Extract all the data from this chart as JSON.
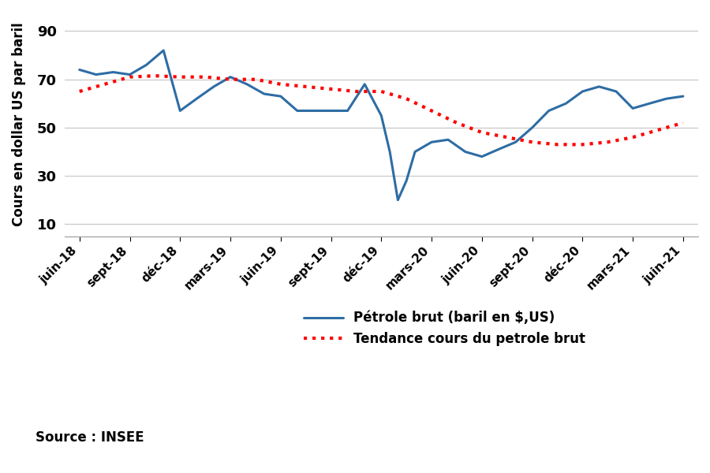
{
  "x_labels": [
    "juin-18",
    "sept-18",
    "déc-18",
    "mars-19",
    "juin-19",
    "sept-19",
    "déc-19",
    "mars-20",
    "juin-20",
    "sept-20",
    "déc-20",
    "mars-21",
    "juin-21"
  ],
  "oil_x": [
    0,
    0.33,
    0.67,
    1,
    1.33,
    1.67,
    2,
    2.33,
    2.67,
    3,
    3.33,
    3.67,
    4,
    4.33,
    4.67,
    5,
    5.33,
    5.67,
    6,
    6.17,
    6.33,
    6.5,
    6.67,
    7,
    7.33,
    7.67,
    8,
    8.33,
    8.67,
    9,
    9.33,
    9.67,
    10,
    10.33,
    10.67,
    11,
    11.33,
    11.67,
    12
  ],
  "oil_y": [
    74,
    72,
    73,
    72,
    76,
    82,
    57,
    62,
    67,
    71,
    68,
    64,
    63,
    57,
    57,
    57,
    57,
    68,
    55,
    40,
    20,
    28,
    40,
    44,
    45,
    40,
    38,
    41,
    44,
    50,
    57,
    60,
    65,
    67,
    65,
    58,
    60,
    62,
    63
  ],
  "trend_x": [
    0,
    0.5,
    1,
    1.5,
    2,
    2.5,
    3,
    3.5,
    4,
    4.5,
    5,
    5.5,
    6,
    6.5,
    7,
    7.5,
    8,
    8.5,
    9,
    9.5,
    10,
    10.5,
    11,
    11.5,
    12
  ],
  "trend_y": [
    65,
    68,
    71,
    71.5,
    71,
    71,
    70,
    70,
    68,
    67,
    66,
    65,
    65,
    62,
    57,
    52,
    48,
    46,
    44,
    43,
    43,
    44,
    46,
    49,
    52
  ],
  "oil_color": "#2E6DA4",
  "trend_color": "#FF0000",
  "ylabel": "Cours en dollar US par baril",
  "yticks": [
    10,
    30,
    50,
    70,
    90
  ],
  "ylim": [
    5,
    98
  ],
  "source_text": "Source : INSEE",
  "legend1": "Pétrole brut (baril en $,US)",
  "legend2": "Tendance cours du petrole brut",
  "background_color": "#FFFFFF",
  "grid_color": "#CCCCCC"
}
